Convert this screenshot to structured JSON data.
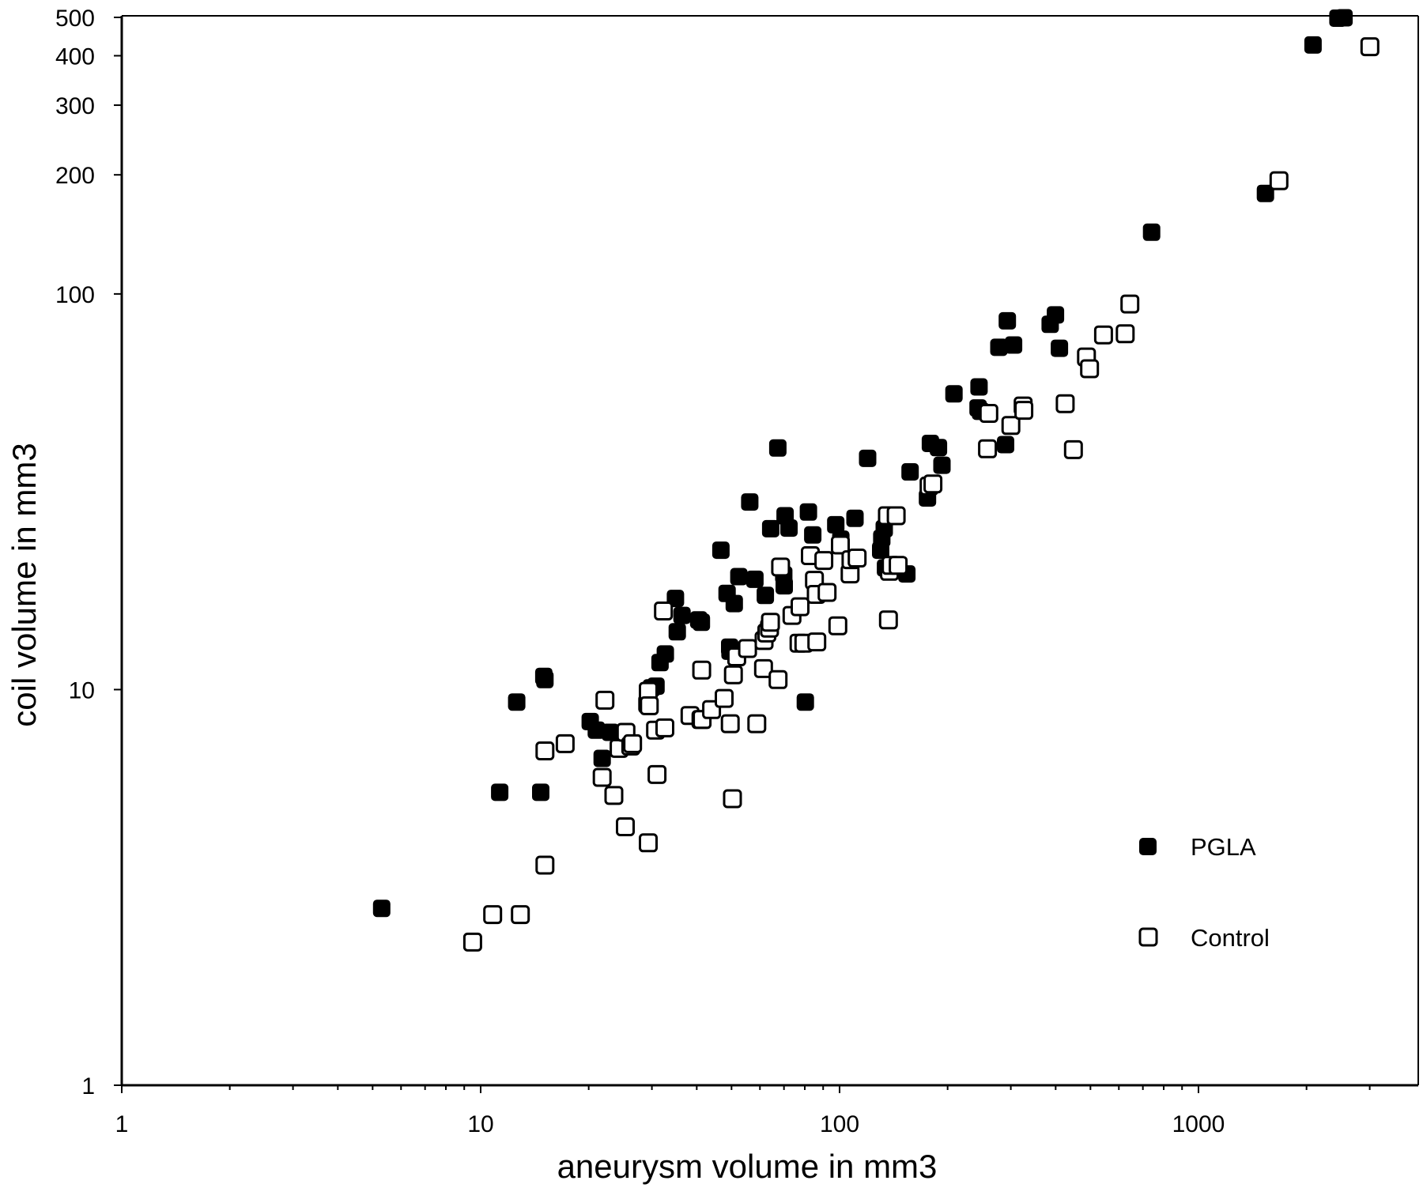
{
  "chart_data": {
    "type": "scatter",
    "title": "",
    "xlabel": "aneurysm volume in mm3",
    "ylabel": "coil volume in mm3",
    "x_scale": "log",
    "y_scale": "log",
    "xlim": [
      1,
      3500
    ],
    "ylim": [
      1,
      500
    ],
    "x_ticks": [
      1,
      10,
      100,
      1000
    ],
    "x_tick_labels": [
      "1",
      "10",
      "100",
      "1000"
    ],
    "y_ticks": [
      1,
      10,
      100,
      200,
      300,
      400,
      500
    ],
    "y_tick_labels": [
      "1",
      "10",
      "100",
      "200",
      "300",
      "400",
      "500"
    ],
    "grid": false,
    "legend_position": "bottom-right",
    "series": [
      {
        "name": "PGLA",
        "marker": "filled-square",
        "color": "#000000",
        "points": [
          [
            5.3,
            2.8
          ],
          [
            11.3,
            5.5
          ],
          [
            12.6,
            9.3
          ],
          [
            14.7,
            5.5
          ],
          [
            15,
            10.8
          ],
          [
            15.1,
            10.6
          ],
          [
            20.2,
            8.3
          ],
          [
            21,
            7.9
          ],
          [
            21.8,
            6.7
          ],
          [
            23,
            7.8
          ],
          [
            29.9,
            10.1
          ],
          [
            30.8,
            10.2
          ],
          [
            31.6,
            11.7
          ],
          [
            32.7,
            12.3
          ],
          [
            34.9,
            17
          ],
          [
            35.3,
            14
          ],
          [
            36.4,
            15.4
          ],
          [
            40.5,
            15
          ],
          [
            41.2,
            14.8
          ],
          [
            46.7,
            22.5
          ],
          [
            48.6,
            17.5
          ],
          [
            49.4,
            12.8
          ],
          [
            49.5,
            12.5
          ],
          [
            50.9,
            16.5
          ],
          [
            52.4,
            19.3
          ],
          [
            56.2,
            29.8
          ],
          [
            58.1,
            19
          ],
          [
            62.1,
            17.3
          ],
          [
            64.3,
            25.5
          ],
          [
            67.3,
            40.8
          ],
          [
            69.9,
            19.5
          ],
          [
            70.1,
            18.3
          ],
          [
            70.5,
            27.5
          ],
          [
            72.3,
            25.6
          ],
          [
            80.3,
            9.3
          ],
          [
            81.9,
            28.1
          ],
          [
            84.2,
            24.6
          ],
          [
            97.6,
            26.1
          ],
          [
            100.8,
            24
          ],
          [
            110.4,
            27.1
          ],
          [
            119.7,
            38.4
          ],
          [
            130.2,
            22.5
          ],
          [
            131.1,
            24.1
          ],
          [
            133.2,
            25.5
          ],
          [
            134.3,
            20.3
          ],
          [
            154,
            19.6
          ],
          [
            157.2,
            35.5
          ],
          [
            175.8,
            30.5
          ],
          [
            179.1,
            41.9
          ],
          [
            188.6,
            40.9
          ],
          [
            192.9,
            36.9
          ],
          [
            208.3,
            55.9
          ],
          [
            243.2,
            51.5
          ],
          [
            244.6,
            58.2
          ],
          [
            247.2,
            50.5
          ],
          [
            277.8,
            73.3
          ],
          [
            290.1,
            41.6
          ],
          [
            293.3,
            85.5
          ],
          [
            305.3,
            74.3
          ],
          [
            386.2,
            83.8
          ],
          [
            399.5,
            88.5
          ],
          [
            409.8,
            72.9
          ],
          [
            740.2,
            143.2
          ],
          [
            1536.7,
            179.5
          ],
          [
            2085.4,
            425.8
          ],
          [
            2447.1,
            497.8
          ],
          [
            2543.6,
            498.9
          ]
        ]
      },
      {
        "name": "Control",
        "marker": "open-square",
        "color": "#000000",
        "points": [
          [
            9.5,
            2.3
          ],
          [
            10.8,
            2.7
          ],
          [
            12.9,
            2.7
          ],
          [
            15.1,
            7
          ],
          [
            15.1,
            3.6
          ],
          [
            17.2,
            7.3
          ],
          [
            21.8,
            6
          ],
          [
            22.2,
            9.4
          ],
          [
            23.5,
            5.4
          ],
          [
            24.3,
            7.1
          ],
          [
            25.3,
            4.5
          ],
          [
            25.4,
            7.8
          ],
          [
            26.2,
            7.2
          ],
          [
            26.5,
            7.3
          ],
          [
            29.2,
            9.2
          ],
          [
            29.3,
            4.1
          ],
          [
            29.3,
            9.9
          ],
          [
            29.5,
            9.1
          ],
          [
            30.7,
            7.9
          ],
          [
            31,
            6.1
          ],
          [
            32.3,
            15.8
          ],
          [
            32.6,
            8
          ],
          [
            38.3,
            8.6
          ],
          [
            41.1,
            8.4
          ],
          [
            41.3,
            11.2
          ],
          [
            41.4,
            8.4
          ],
          [
            44,
            8.9
          ],
          [
            47.7,
            9.5
          ],
          [
            49.6,
            8.2
          ],
          [
            50.3,
            5.3
          ],
          [
            50.6,
            10.9
          ],
          [
            51.7,
            12.1
          ],
          [
            55.4,
            12.7
          ],
          [
            58.8,
            8.2
          ],
          [
            61.4,
            11.3
          ],
          [
            61.6,
            13.3
          ],
          [
            62.7,
            13.9
          ],
          [
            63.8,
            14.3
          ],
          [
            64.2,
            14.8
          ],
          [
            67.4,
            10.6
          ],
          [
            68.5,
            20.4
          ],
          [
            73.7,
            15.4
          ],
          [
            77.1,
            13.1
          ],
          [
            77.6,
            16.2
          ],
          [
            79.5,
            13.1
          ],
          [
            82.9,
            21.8
          ],
          [
            85.1,
            18.9
          ],
          [
            86.1,
            17.4
          ],
          [
            86.4,
            13.2
          ],
          [
            90.4,
            21.2
          ],
          [
            92.3,
            17.6
          ],
          [
            98.9,
            14.5
          ],
          [
            100.5,
            23.2
          ],
          [
            107,
            19.6
          ],
          [
            107.6,
            21.3
          ],
          [
            111.9,
            21.5
          ],
          [
            135.9,
            27.5
          ],
          [
            136.8,
            15
          ],
          [
            137.7,
            19.9
          ],
          [
            139.2,
            20.6
          ],
          [
            143.8,
            27.5
          ],
          [
            145.6,
            20.6
          ],
          [
            177.6,
            32.7
          ],
          [
            182,
            33.1
          ],
          [
            258.3,
            40.6
          ],
          [
            260.5,
            49.9
          ],
          [
            300.2,
            46.5
          ],
          [
            324.6,
            52.1
          ],
          [
            326.2,
            50.8
          ],
          [
            425.3,
            52.8
          ],
          [
            448.3,
            40.4
          ],
          [
            487.4,
            69.3
          ],
          [
            497.2,
            64.7
          ],
          [
            543.9,
            78.8
          ],
          [
            625,
            79.3
          ],
          [
            643.9,
            94.3
          ],
          [
            1676,
            193.3
          ],
          [
            3002.1,
            421.6
          ]
        ]
      }
    ]
  }
}
